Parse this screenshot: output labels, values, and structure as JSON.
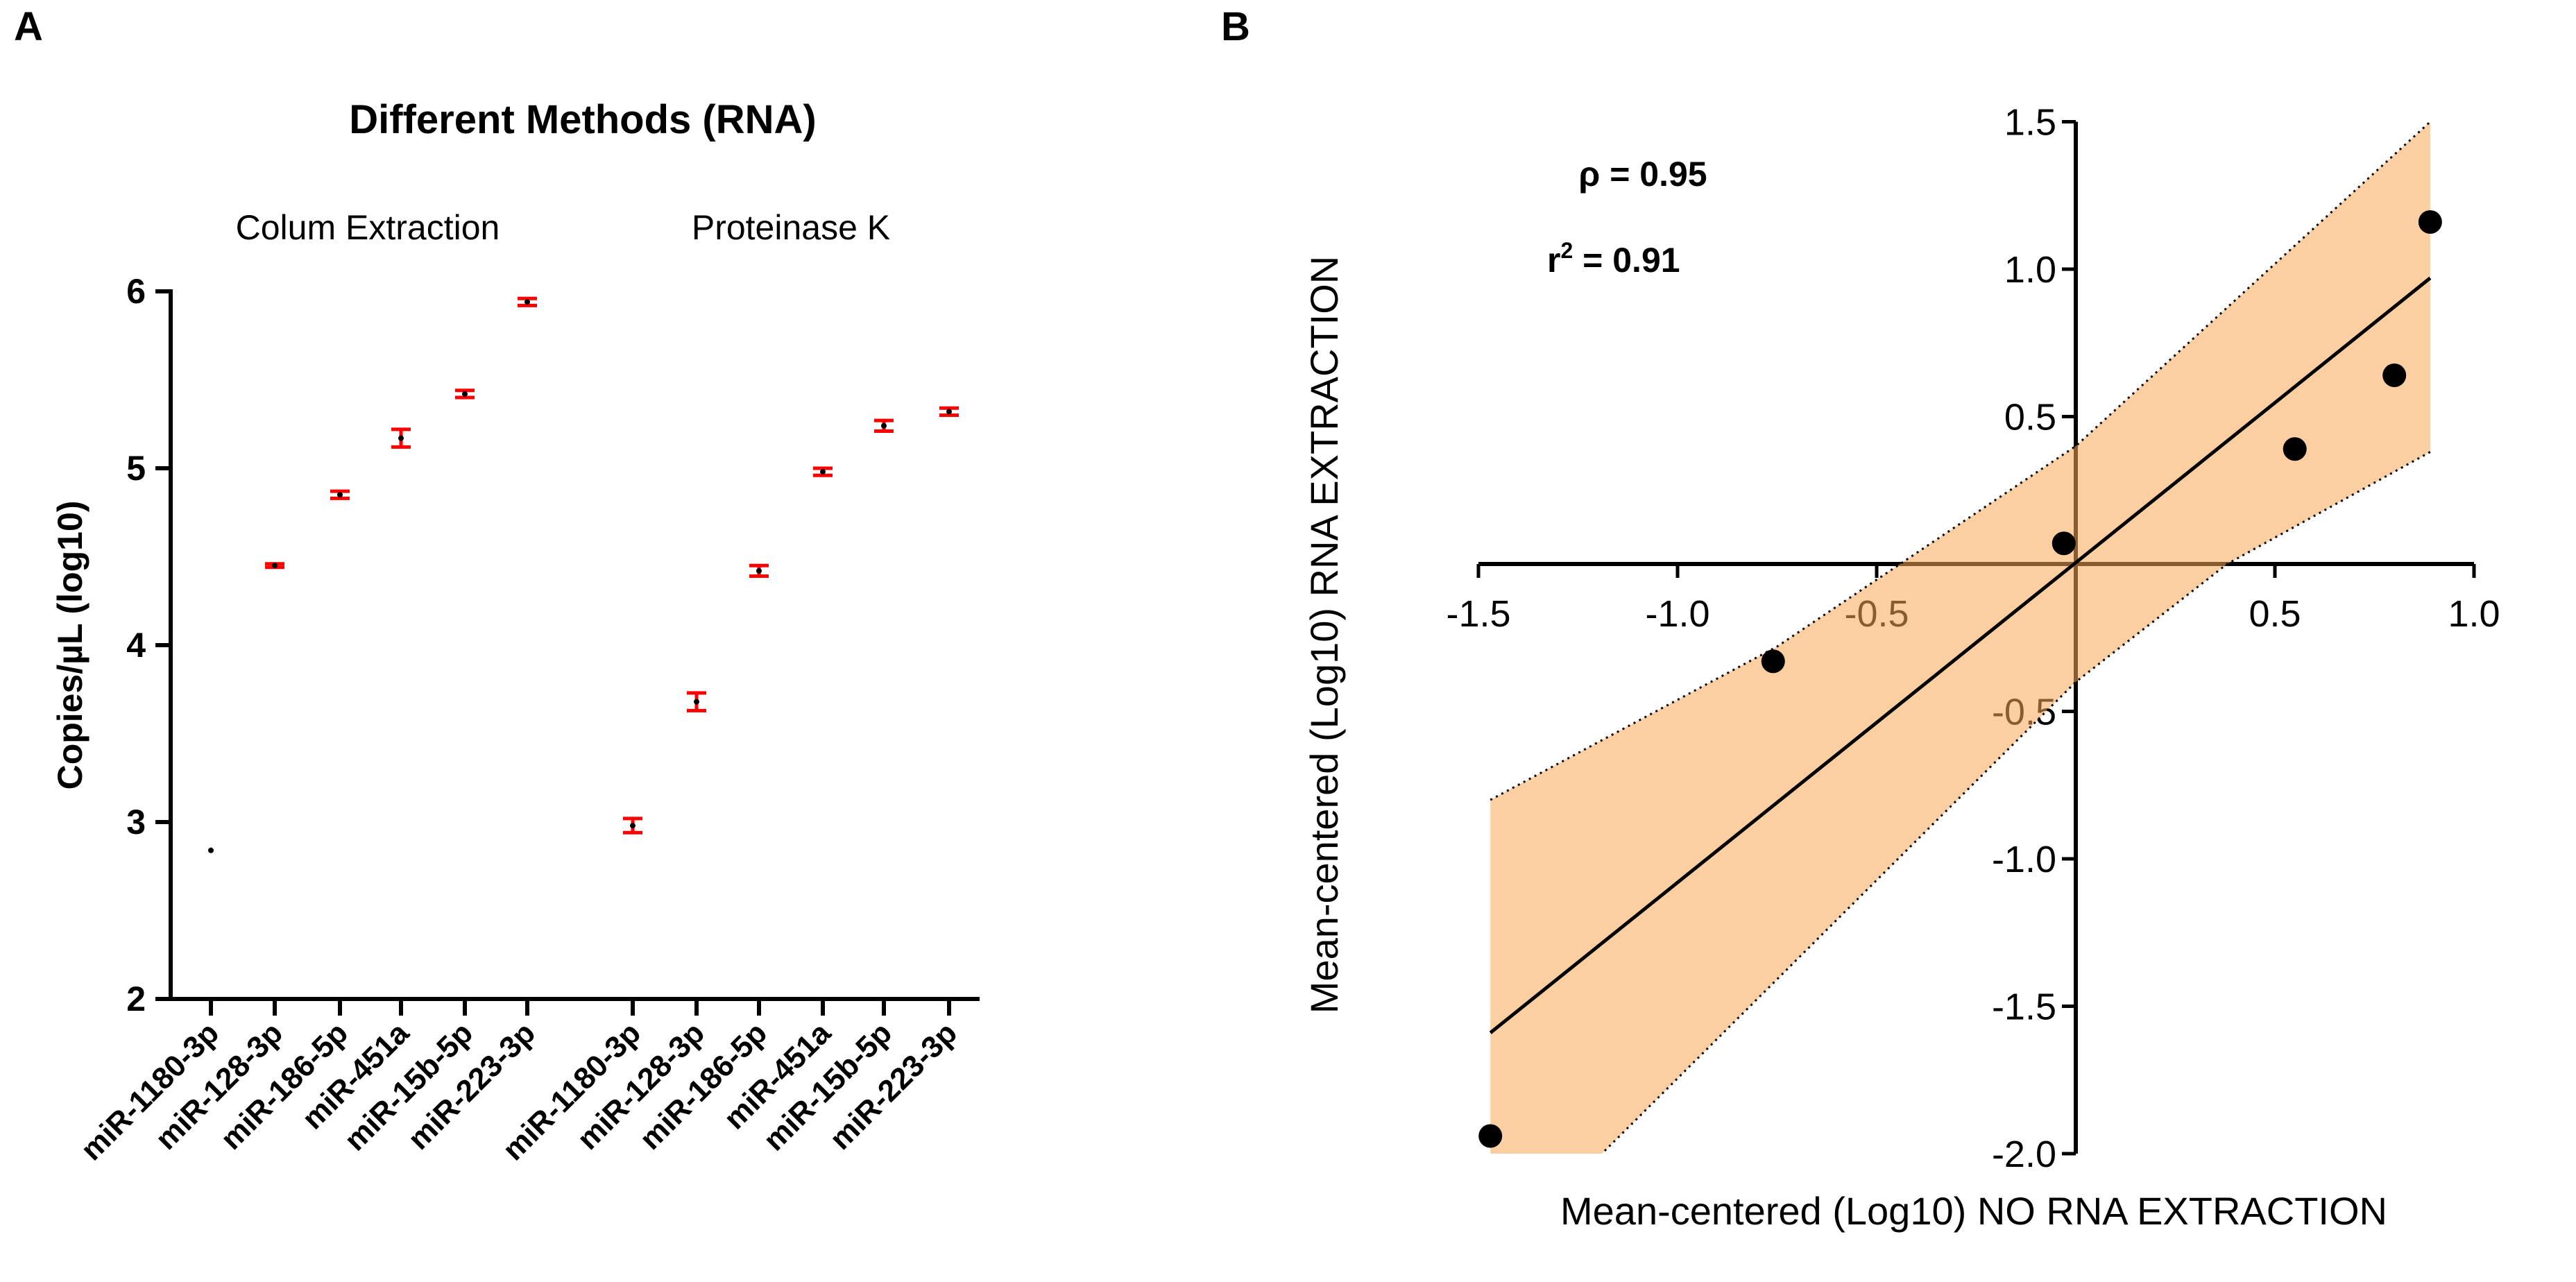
{
  "panel_labels": {
    "a": "A",
    "b": "B"
  },
  "chart_data": [
    {
      "type": "scatter",
      "title": "Different Methods (RNA)",
      "ylabel": "Copies/µL (log10)",
      "ylim": [
        2,
        6
      ],
      "yticks": [
        "2",
        "3",
        "4",
        "5",
        "6"
      ],
      "groups": [
        {
          "name": "Colum Extraction",
          "categories": [
            "miR-1180-3p",
            "miR-128-3p",
            "miR-186-5p",
            "miR-451a",
            "miR-15b-5p",
            "miR-223-3p"
          ],
          "values": [
            2.84,
            4.45,
            4.85,
            5.17,
            5.42,
            5.94
          ],
          "errors": [
            0,
            0.01,
            0.02,
            0.05,
            0.02,
            0.02
          ]
        },
        {
          "name": "Proteinase K",
          "categories": [
            "miR-1180-3p",
            "miR-128-3p",
            "miR-186-5p",
            "miR-451a",
            "miR-15b-5p",
            "miR-223-3p"
          ],
          "values": [
            2.98,
            3.68,
            4.42,
            4.98,
            5.24,
            5.32
          ],
          "errors": [
            0.04,
            0.05,
            0.03,
            0.02,
            0.03,
            0.02
          ]
        }
      ],
      "colors": {
        "error_bar": "#ff0000",
        "point": "#000000"
      }
    },
    {
      "type": "scatter",
      "xlabel": "Mean-centered (Log10) NO RNA EXTRACTION",
      "ylabel": "Mean-centered (Log10) RNA EXTRACTION",
      "xlim": [
        -1.5,
        1.0
      ],
      "ylim": [
        -2.0,
        1.5
      ],
      "xticks": [
        "-1.5",
        "-1.0",
        "-0.5",
        "0.5",
        "1.0"
      ],
      "yticks": [
        "-2.0",
        "-1.5",
        "-1.0",
        "-0.5",
        "0.5",
        "1.0",
        "1.5"
      ],
      "x": [
        -1.47,
        -0.76,
        -0.03,
        0.55,
        0.8,
        0.89
      ],
      "y": [
        -1.94,
        -0.33,
        0.07,
        0.39,
        0.64,
        1.16
      ],
      "regression": {
        "x": [
          -1.47,
          0.89
        ],
        "y": [
          -1.59,
          0.97
        ]
      },
      "ci_upper": {
        "x": [
          -1.47,
          -0.75,
          0.0,
          0.89
        ],
        "y": [
          -0.8,
          -0.28,
          0.4,
          1.5
        ]
      },
      "ci_lower": {
        "x": [
          0.89,
          0.38,
          0.0,
          -1.19
        ],
        "y": [
          0.38,
          0.0,
          -0.4,
          -2.0
        ]
      },
      "annotations": {
        "rho": "ρ = 0.95",
        "r2_prefix": "r",
        "r2_sup": "2",
        "r2_value": " = 0.91"
      },
      "colors": {
        "band": "#f9a857",
        "point": "#000000"
      }
    }
  ]
}
